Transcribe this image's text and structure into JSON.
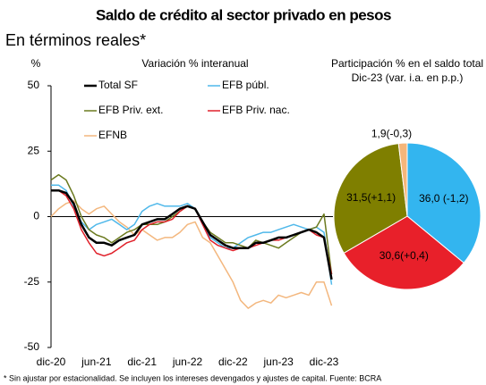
{
  "title": "Saldo de crédito al sector privado en pesos",
  "subtitle": "En términos reales*",
  "footnote": "* Sin ajustar por estacionalidad. Se incluyen los intereses devengados y ajustes de capital. Fuente: BCRA",
  "chart_data": [
    {
      "type": "line",
      "title": "Variación % interanual",
      "y_label": "%",
      "categories": [
        "dic-20",
        null,
        null,
        null,
        null,
        null,
        "jun-21",
        null,
        null,
        null,
        null,
        null,
        "dic-21",
        null,
        null,
        null,
        null,
        null,
        "jun-22",
        null,
        null,
        null,
        null,
        null,
        "dic-22",
        null,
        null,
        null,
        null,
        null,
        "jun-23",
        null,
        null,
        null,
        null,
        null,
        "dic-23",
        null
      ],
      "ylim": [
        -50,
        50
      ],
      "yticks": [
        -50,
        -25,
        0,
        25,
        50
      ],
      "series": [
        {
          "name": "Total SF",
          "color": "#000000",
          "values": [
            10,
            10,
            9,
            5,
            -3,
            -8,
            -10,
            -10,
            -11,
            -9,
            -8,
            -7,
            -3,
            -2,
            -1,
            -1,
            1,
            3,
            4,
            3,
            -2,
            -7,
            -9,
            -11,
            -12,
            -12,
            -12,
            -10,
            -10,
            -9,
            -8,
            -8,
            -7,
            -6,
            -5,
            -6,
            -8,
            -24
          ]
        },
        {
          "name": "EFB públ.",
          "color": "#4fb8ea",
          "values": [
            12,
            12,
            10,
            4,
            -2,
            -5,
            -3,
            -2,
            -1,
            -3,
            -5,
            -3,
            2,
            4,
            5,
            4,
            4,
            4,
            5,
            3,
            -3,
            -8,
            -10,
            -12,
            -12,
            -10,
            -8,
            -7,
            -6,
            -6,
            -5,
            -4,
            -3,
            -4,
            -5,
            -4,
            -6,
            -26
          ]
        },
        {
          "name": "EFB Priv. ext.",
          "color": "#6b7a1f",
          "values": [
            14,
            16,
            14,
            8,
            0,
            -5,
            -7,
            -8,
            -10,
            -8,
            -6,
            -5,
            -3,
            -3,
            -3,
            -2,
            0,
            2,
            4,
            3,
            -2,
            -6,
            -8,
            -10,
            -10,
            -11,
            -12,
            -9,
            -10,
            -11,
            -12,
            -10,
            -8,
            -6,
            -5,
            -4,
            1,
            -22
          ]
        },
        {
          "name": "EFB Priv. nac.",
          "color": "#e0202a",
          "values": [
            10,
            10,
            8,
            3,
            -5,
            -10,
            -14,
            -15,
            -14,
            -12,
            -10,
            -9,
            -5,
            -3,
            -2,
            -2,
            -1,
            2,
            4,
            3,
            -3,
            -9,
            -11,
            -12,
            -13,
            -12,
            -12,
            -11,
            -10,
            -9,
            -9,
            -8,
            -7,
            -6,
            -5,
            -7,
            -8,
            -22
          ]
        },
        {
          "name": "EFNB",
          "color": "#f3b77e",
          "values": [
            0,
            3,
            5,
            6,
            3,
            1,
            3,
            4,
            1,
            -2,
            -4,
            -7,
            -5,
            -7,
            -9,
            -8,
            -8,
            -6,
            -3,
            -2,
            -8,
            -10,
            -15,
            -20,
            -25,
            -32,
            -35,
            -33,
            -32,
            -33,
            -30,
            -31,
            -30,
            -29,
            -30,
            -25,
            -25,
            -34
          ]
        }
      ]
    },
    {
      "type": "pie",
      "title": [
        "Participación % en el saldo total",
        "Dic-23 (var. i.a. en p.p.)"
      ],
      "categories": [
        "EFB públ.",
        "EFB Priv. nac.",
        "EFB Priv. ext.",
        "EFNB"
      ],
      "values": [
        36.0,
        30.6,
        31.5,
        1.9
      ],
      "value_labels": [
        "36,0 (-1,2)",
        "30,6(+0,4)",
        "31,5(+1,1)",
        "1,9(-0,3)"
      ],
      "colors": [
        "#33b5ef",
        "#e8202a",
        "#7f7f00",
        "#f5b67a"
      ]
    }
  ]
}
